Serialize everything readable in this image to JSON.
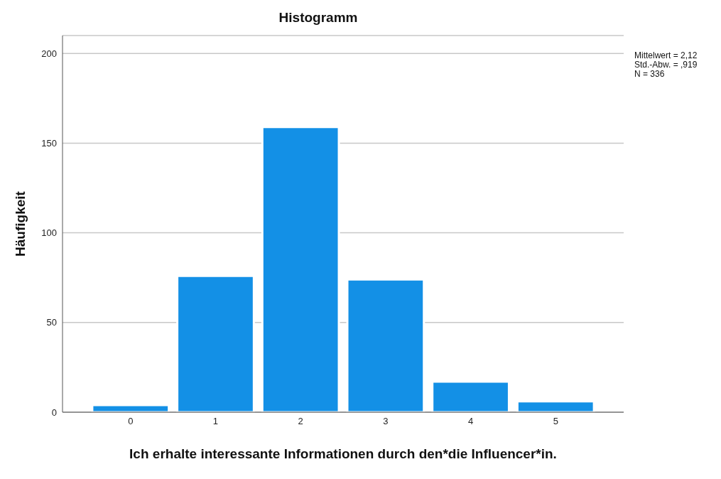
{
  "chart_data": {
    "type": "histogram",
    "title": "Histogramm",
    "xlabel": "Ich erhalte interessante Informationen durch den*die Influencer*in.",
    "ylabel": "Häufigkeit",
    "bins": [
      -0.5,
      0.5,
      1.5,
      2.5,
      3.5,
      4.5,
      5.5
    ],
    "values": [
      4,
      76,
      159,
      74,
      17,
      6
    ],
    "color": "#1390e6",
    "xlim": [
      -0.8,
      5.8
    ],
    "xticks": [
      0,
      1,
      2,
      3,
      4,
      5
    ],
    "ylim": [
      0,
      210
    ],
    "yticks": [
      0,
      50,
      100,
      150,
      200
    ],
    "grid": "y",
    "legend": false,
    "annotations": [
      "Mittelwert = 2,12\nStd.-Abw. = ,919\nN = 336"
    ]
  }
}
